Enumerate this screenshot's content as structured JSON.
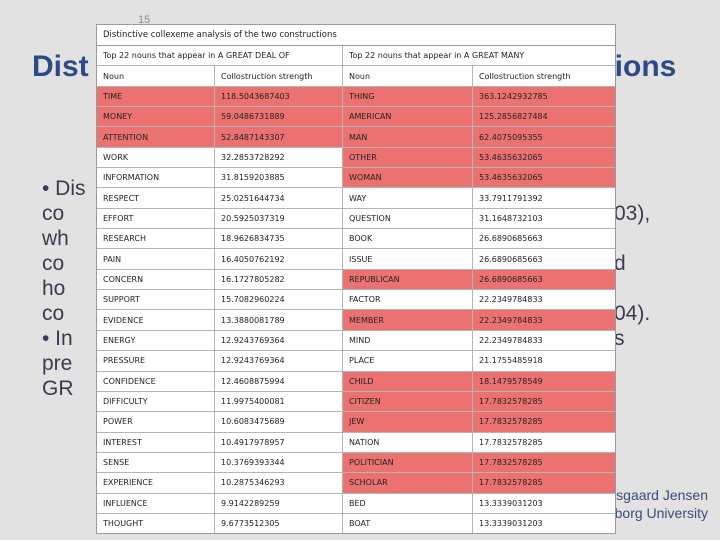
{
  "slide": {
    "number": "15",
    "title_left": "Dist",
    "title_right": "ctions",
    "bullets": [
      {
        "left": "• Dis",
        "right": ""
      },
      {
        "left": "  co",
        "right": "03),"
      },
      {
        "left": "  wh",
        "right": ""
      },
      {
        "left": "  co",
        "right": "d"
      },
      {
        "left": "  ho",
        "right": ""
      },
      {
        "left": "  co",
        "right": "04)."
      },
      {
        "left": "• In",
        "right": "s"
      },
      {
        "left": "  pre",
        "right": ""
      },
      {
        "left": "  GR",
        "right": ""
      }
    ],
    "footer_line1": "sgaard Jensen",
    "footer_line2": "CGS, Aalborg University"
  },
  "table": {
    "title": "Distinctive collexeme analysis of the two constructions",
    "left_header": "Top 22 nouns that appear in A GREAT DEAL OF",
    "right_header": "Top 22 nouns that appear in A GREAT MANY",
    "col_noun": "Noun",
    "col_strength": "Collostruction strength",
    "rows": [
      {
        "n1": "TIME",
        "s1": "118.5043687403",
        "n2": "THING",
        "s2": "363.1242932785",
        "hl1": true,
        "hl2": true
      },
      {
        "n1": "MONEY",
        "s1": "59.0486731889",
        "n2": "AMERICAN",
        "s2": "125.2856827484",
        "hl1": true,
        "hl2": true
      },
      {
        "n1": "ATTENTION",
        "s1": "52.8487143307",
        "n2": "MAN",
        "s2": "62.4075095355",
        "hl1": true,
        "hl2": true
      },
      {
        "n1": "WORK",
        "s1": "32.2853728292",
        "n2": "OTHER",
        "s2": "53.4635632065",
        "hl1": false,
        "hl2": true
      },
      {
        "n1": "INFORMATION",
        "s1": "31.8159203885",
        "n2": "WOMAN",
        "s2": "53.4635632065",
        "hl1": false,
        "hl2": true
      },
      {
        "n1": "RESPECT",
        "s1": "25.0251644734",
        "n2": "WAY",
        "s2": "33.7911791392",
        "hl1": false,
        "hl2": false
      },
      {
        "n1": "EFFORT",
        "s1": "20.5925037319",
        "n2": "QUESTION",
        "s2": "31.1648732103",
        "hl1": false,
        "hl2": false
      },
      {
        "n1": "RESEARCH",
        "s1": "18.9626834735",
        "n2": "BOOK",
        "s2": "26.6890685663",
        "hl1": false,
        "hl2": false
      },
      {
        "n1": "PAIN",
        "s1": "16.4050762192",
        "n2": "ISSUE",
        "s2": "26.6890685663",
        "hl1": false,
        "hl2": false
      },
      {
        "n1": "CONCERN",
        "s1": "16.1727805282",
        "n2": "REPUBLICAN",
        "s2": "26.6890685663",
        "hl1": false,
        "hl2": true
      },
      {
        "n1": "SUPPORT",
        "s1": "15.7082960224",
        "n2": "FACTOR",
        "s2": "22.2349784833",
        "hl1": false,
        "hl2": false
      },
      {
        "n1": "EVIDENCE",
        "s1": "13.3880081789",
        "n2": "MEMBER",
        "s2": "22.2349784833",
        "hl1": false,
        "hl2": true
      },
      {
        "n1": "ENERGY",
        "s1": "12.9243769364",
        "n2": "MIND",
        "s2": "22.2349784833",
        "hl1": false,
        "hl2": false
      },
      {
        "n1": "PRESSURE",
        "s1": "12.9243769364",
        "n2": "PLACE",
        "s2": "21.1755485918",
        "hl1": false,
        "hl2": false
      },
      {
        "n1": "CONFIDENCE",
        "s1": "12.4608875994",
        "n2": "CHILD",
        "s2": "18.1479578549",
        "hl1": false,
        "hl2": true
      },
      {
        "n1": "DIFFICULTY",
        "s1": "11.9975400081",
        "n2": "CITIZEN",
        "s2": "17.7832578285",
        "hl1": false,
        "hl2": true
      },
      {
        "n1": "POWER",
        "s1": "10.6083475689",
        "n2": "JEW",
        "s2": "17.7832578285",
        "hl1": false,
        "hl2": true
      },
      {
        "n1": "INTEREST",
        "s1": "10.4917978957",
        "n2": "NATION",
        "s2": "17.7832578285",
        "hl1": false,
        "hl2": false
      },
      {
        "n1": "SENSE",
        "s1": "10.3769393344",
        "n2": "POLITICIAN",
        "s2": "17.7832578285",
        "hl1": false,
        "hl2": true
      },
      {
        "n1": "EXPERIENCE",
        "s1": "10.2875346293",
        "n2": "SCHOLAR",
        "s2": "17.7832578285",
        "hl1": false,
        "hl2": true
      },
      {
        "n1": "INFLUENCE",
        "s1": "9.9142289259",
        "n2": "BED",
        "s2": "13.3339031203",
        "hl1": false,
        "hl2": false
      },
      {
        "n1": "THOUGHT",
        "s1": "9.6773512305",
        "n2": "BOAT",
        "s2": "13.3339031203",
        "hl1": false,
        "hl2": false
      }
    ]
  }
}
